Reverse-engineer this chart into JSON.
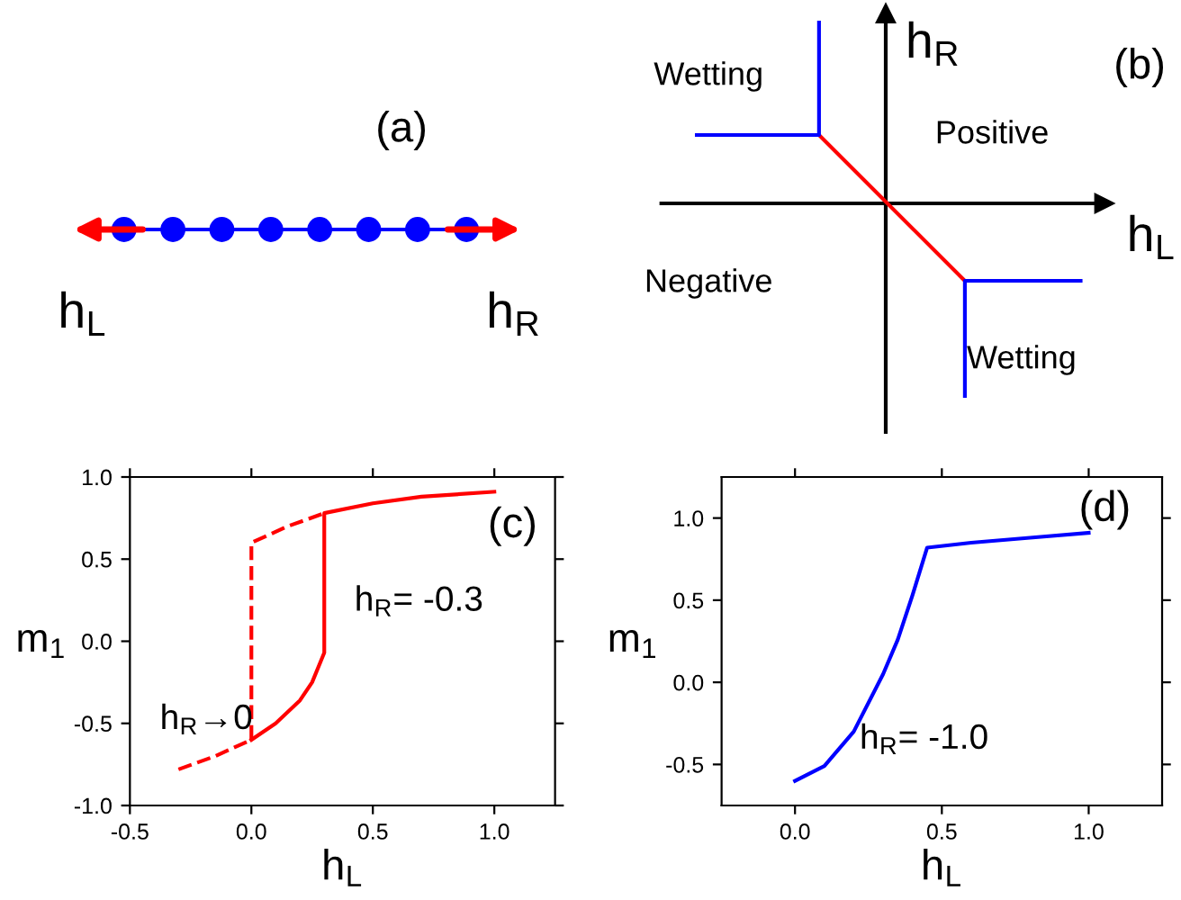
{
  "chart_data": [
    {
      "type": "other",
      "annotations": [
        "(a)",
        "h$_{L}$",
        "h$_{R}$"
      ]
    },
    {
      "type": "other",
      "annotations": [
        "Wetting",
        "Positive",
        "Negative",
        "Wetting",
        "h$_{R}$",
        "h$_{L}$",
        "(b)"
      ]
    },
    {
      "type": "line",
      "xlabel": "h$_{L}$",
      "ylabel": "m$_{1}$",
      "xlim": [
        -0.5,
        1.25
      ],
      "ylim": [
        -1.0,
        1.0
      ],
      "xticks": [
        {
          "value": -0.5,
          "label": "-0.5"
        },
        {
          "value": 0,
          "label": "0.0"
        },
        {
          "value": 0.5,
          "label": "0.5"
        },
        {
          "value": 1.0,
          "label": "1.0"
        }
      ],
      "yticks": [
        {
          "value": -1.0,
          "label": "-1.0"
        },
        {
          "value": -0.5,
          "label": "-0.5"
        },
        {
          "value": 0,
          "label": "0.0"
        },
        {
          "value": 0.5,
          "label": "0.5"
        },
        {
          "value": 1.0,
          "label": "1.0"
        }
      ],
      "grid": false,
      "legend": false,
      "series": [
        {
          "color": "#ff0000",
          "line_style": "dashed",
          "x": [
            -0.3,
            -0.15,
            0,
            0,
            0.15,
            0.3
          ],
          "values": [
            -0.78,
            -0.7,
            -0.6,
            0.6,
            0.7,
            0.78
          ]
        },
        {
          "color": "#ff0000",
          "line_style": "solid",
          "x": [
            0,
            0.1,
            0.2,
            0.25,
            0.3,
            0.3,
            0.5,
            0.7,
            1.0
          ],
          "values": [
            -0.6,
            -0.5,
            -0.36,
            -0.25,
            -0.07,
            0.78,
            0.84,
            0.88,
            0.91
          ]
        }
      ],
      "annotations": [
        "(c)",
        "h$_{R}$= -0.3",
        "h$_{R}$→0"
      ]
    },
    {
      "type": "line",
      "xlabel": "h$_{L}$",
      "ylabel": "m$_{1}$",
      "xlim": [
        -0.25,
        1.25
      ],
      "ylim": [
        -0.75,
        1.25
      ],
      "xticks": [
        {
          "value": 0,
          "label": "0.0"
        },
        {
          "value": 0.5,
          "label": "0.5"
        },
        {
          "value": 1.0,
          "label": "1.0"
        }
      ],
      "yticks": [
        {
          "value": -0.5,
          "label": "-0.5"
        },
        {
          "value": 0,
          "label": "0.0"
        },
        {
          "value": 0.5,
          "label": "0.5"
        },
        {
          "value": 1.0,
          "label": "1.0"
        }
      ],
      "grid": false,
      "legend": false,
      "series": [
        {
          "color": "#0000ff",
          "line_style": "solid",
          "x": [
            0,
            0.1,
            0.2,
            0.3,
            0.35,
            0.4,
            0.45,
            0.6,
            0.8,
            1.0
          ],
          "values": [
            -0.6,
            -0.51,
            -0.3,
            0.05,
            0.26,
            0.53,
            0.82,
            0.85,
            0.88,
            0.91
          ]
        }
      ],
      "annotations": [
        "(d)",
        "h$_{R}$= -1.0"
      ]
    }
  ]
}
